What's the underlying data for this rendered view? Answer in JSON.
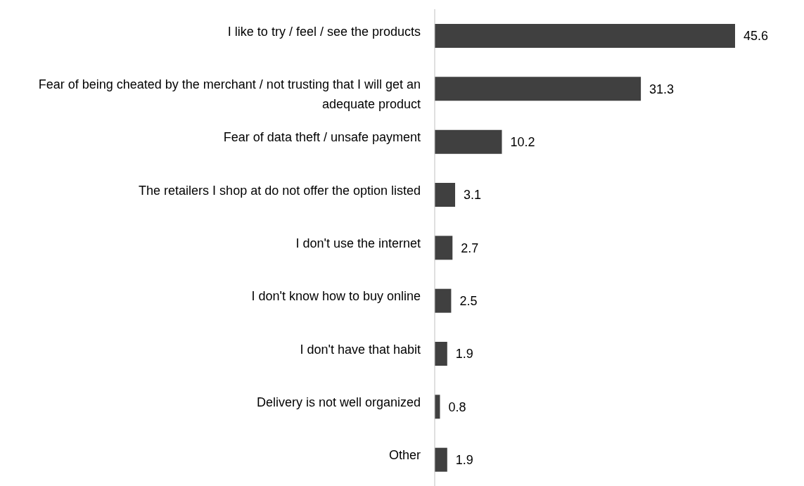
{
  "chart_data": {
    "type": "bar",
    "orientation": "horizontal",
    "categories": [
      "I like to try / feel / see the products",
      "Fear of being cheated by the merchant / not trusting that I will get an adequate product",
      "Fear of data theft / unsafe payment",
      "The retailers I shop at do not offer the option listed",
      "I don't use the internet",
      "I don't know how to buy online",
      "I don't have that habit",
      "Delivery is not well organized",
      "Other"
    ],
    "values": [
      45.6,
      31.3,
      10.2,
      3.1,
      2.7,
      2.5,
      1.9,
      0.8,
      1.9
    ],
    "color": "#404040",
    "data_labels": true
  }
}
